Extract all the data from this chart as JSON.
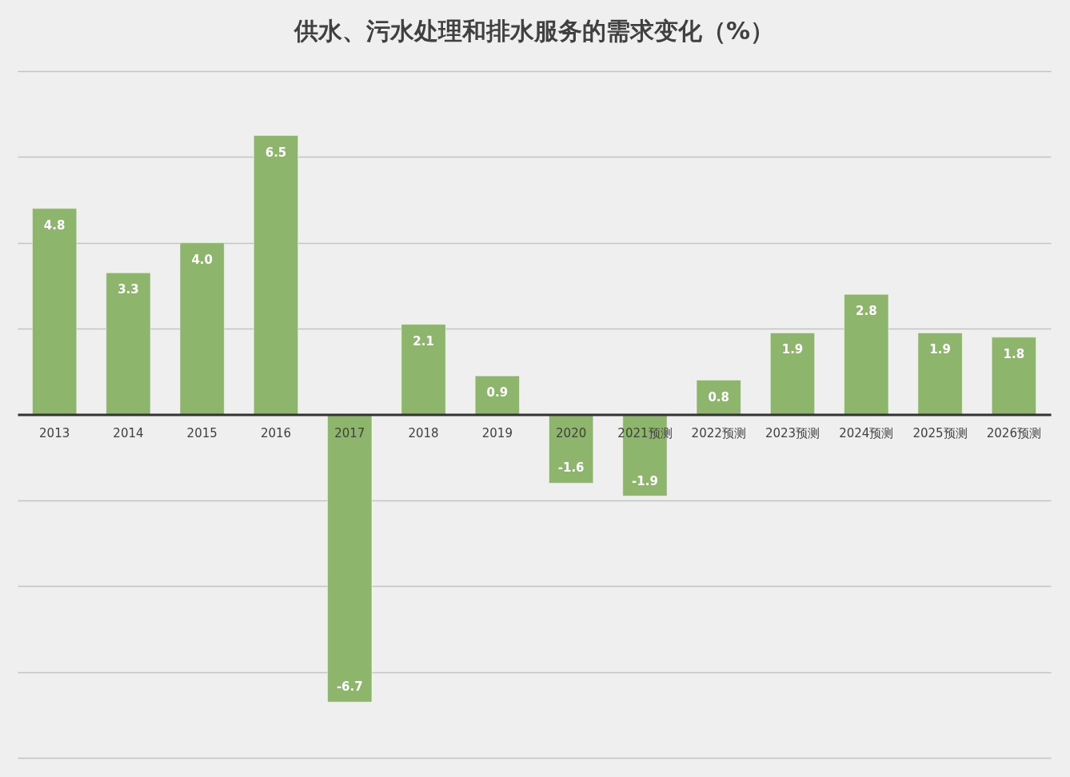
{
  "chart_data": {
    "type": "bar",
    "title": "供水、污水处理和排水服务的需求变化（%）",
    "categories": [
      "2013",
      "2014",
      "2015",
      "2016",
      "2017",
      "2018",
      "2019",
      "2020",
      "2021预测",
      "2022预测",
      "2023预测",
      "2024预测",
      "2025预测",
      "2026预测"
    ],
    "values": [
      4.8,
      3.3,
      4.0,
      6.5,
      -6.7,
      2.1,
      0.9,
      -1.6,
      -1.9,
      0.8,
      1.9,
      2.8,
      1.9,
      1.8
    ],
    "value_labels": [
      "4.8",
      "3.3",
      "4.0",
      "6.5",
      "-6.7",
      "2.1",
      "0.9",
      "-1.6",
      "-1.9",
      "0.8",
      "1.9",
      "2.8",
      "1.9",
      "1.8"
    ],
    "color": "#8db56b",
    "ylim": [
      -8,
      8
    ],
    "yticks": [
      {
        "value": -8,
        "label": null
      },
      {
        "value": -6,
        "label": null
      },
      {
        "value": -4,
        "label": null
      },
      {
        "value": -2,
        "label": null
      },
      {
        "value": 0,
        "label": null
      },
      {
        "value": 2,
        "label": null
      },
      {
        "value": 4,
        "label": null
      },
      {
        "value": 6,
        "label": null
      },
      {
        "value": 8,
        "label": null
      }
    ],
    "grid": "y",
    "tick_labels": "x"
  }
}
